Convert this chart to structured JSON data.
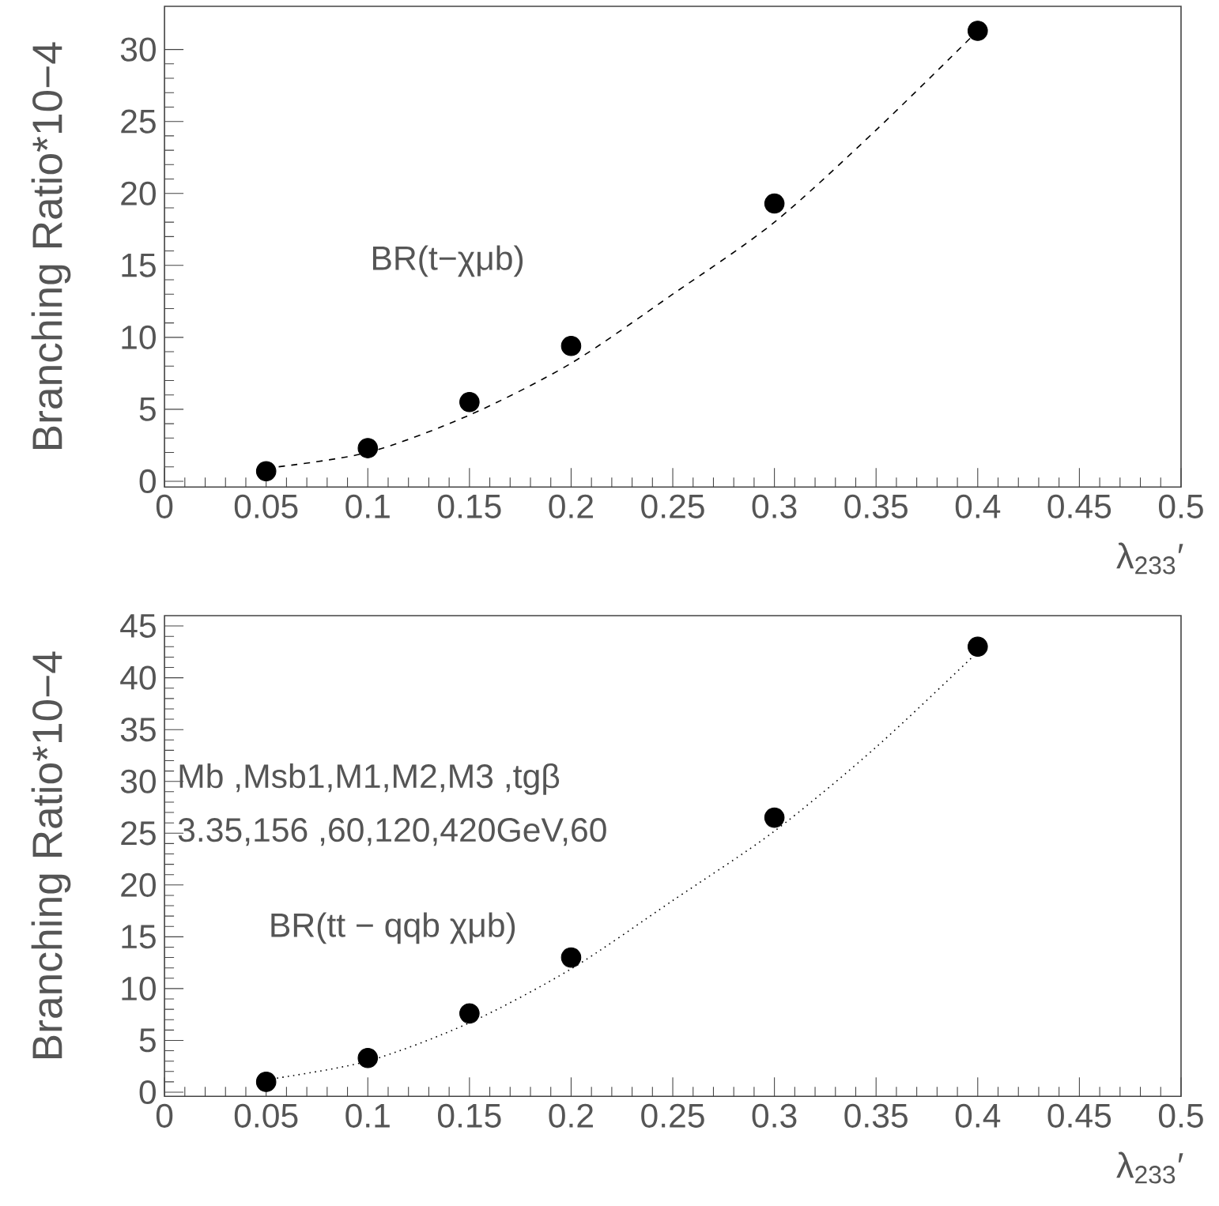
{
  "chart_data": [
    {
      "type": "scatter",
      "xlabel": "λ$_{233}$′",
      "ylabel": "Branching Ratio*10−4",
      "xlim": [
        0,
        0.5
      ],
      "ylim": [
        -0.4,
        33
      ],
      "xticks": [
        0,
        0.05,
        0.1,
        0.15,
        0.2,
        0.25,
        0.3,
        0.35,
        0.4,
        0.45,
        0.5
      ],
      "yticks": [
        0,
        5,
        10,
        15,
        20,
        25,
        30
      ],
      "annotations": [
        "BR(t−χμb)"
      ],
      "series": [
        {
          "type": "scatter",
          "color": "#000000",
          "marker": "circle",
          "x": [
            0.05,
            0.1,
            0.15,
            0.2,
            0.3,
            0.4
          ],
          "values": [
            0.7,
            2.3,
            5.5,
            9.4,
            19.3,
            31.3
          ]
        },
        {
          "type": "line",
          "color": "#000000",
          "line_style": "dashed",
          "x": [
            0.05,
            0.1,
            0.15,
            0.2,
            0.25,
            0.3,
            0.35,
            0.4
          ],
          "values": [
            0.9,
            2.0,
            4.6,
            8.2,
            13.0,
            18.0,
            24.4,
            31.3
          ]
        }
      ]
    },
    {
      "type": "scatter",
      "xlabel": "λ$_{233}$′",
      "ylabel": "Branching Ratio*10−4",
      "xlim": [
        0,
        0.5
      ],
      "ylim": [
        -0.4,
        46
      ],
      "xticks": [
        0,
        0.05,
        0.1,
        0.15,
        0.2,
        0.25,
        0.3,
        0.35,
        0.4,
        0.45,
        0.5
      ],
      "yticks": [
        0,
        5,
        10,
        15,
        20,
        25,
        30,
        35,
        40,
        45
      ],
      "annotations": [
        "Mb  ,Msb1,M1,M2,M3      ,tgβ",
        "3.35,156 ,60,120,420GeV,60",
        "BR(tt − qqb χμb)"
      ],
      "series": [
        {
          "type": "scatter",
          "color": "#000000",
          "marker": "circle",
          "x": [
            0.05,
            0.1,
            0.15,
            0.2,
            0.3,
            0.4
          ],
          "values": [
            1.0,
            3.3,
            7.6,
            13.0,
            26.5,
            43.0
          ]
        },
        {
          "type": "line",
          "color": "#000000",
          "line_style": "dotted",
          "x": [
            0.05,
            0.1,
            0.15,
            0.2,
            0.25,
            0.3,
            0.35,
            0.4
          ],
          "values": [
            1.2,
            3.0,
            6.7,
            11.9,
            18.5,
            25.2,
            33.3,
            42.5
          ]
        }
      ]
    }
  ]
}
